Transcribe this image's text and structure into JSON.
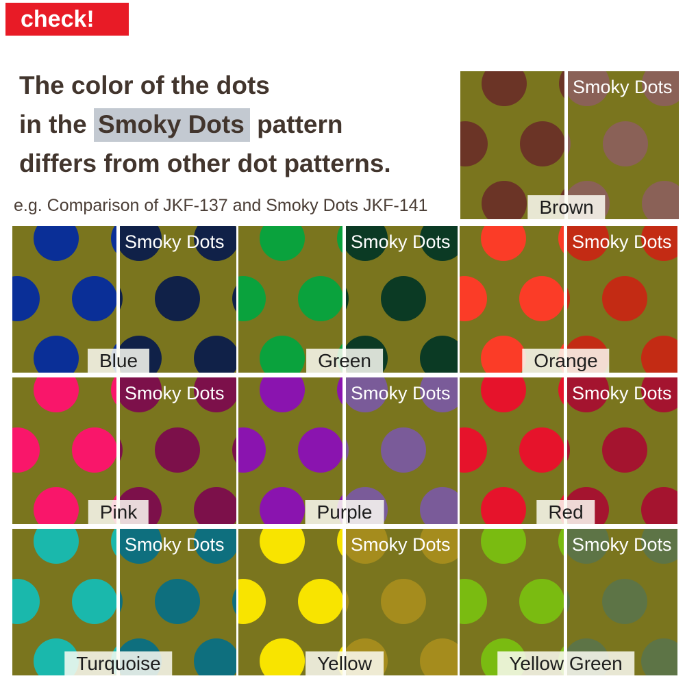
{
  "badge": {
    "label": "check!",
    "bg": "#e81b26",
    "fg": "#ffffff"
  },
  "heading": {
    "line1": "The color of the dots",
    "line2_pre": "in the ",
    "line2_hl": "Smoky Dots",
    "line2_post": " pattern",
    "line3": "differs from other dot patterns.",
    "text_color": "#42352d",
    "highlight_color": "#c3c9d1"
  },
  "subtitle": "e.g. Comparison of JKF-137 and Smoky Dots JKF-141",
  "swatch": {
    "background": "#7a751e",
    "smoky_label": "Smoky Dots",
    "smoky_label_color": "#ffffff",
    "name_label_bg": "rgba(252,251,243,0.85)",
    "name_label_color": "#1d1d1d"
  },
  "pairs": [
    {
      "name": "Brown",
      "vivid": "#6b3426",
      "smoky": "#8a6157"
    },
    {
      "name": "Blue",
      "vivid": "#0a2f97",
      "smoky": "#102148"
    },
    {
      "name": "Green",
      "vivid": "#0aa23d",
      "smoky": "#0b3a24"
    },
    {
      "name": "Orange",
      "vivid": "#fb3c27",
      "smoky": "#c32b14"
    },
    {
      "name": "Pink",
      "vivid": "#f9166a",
      "smoky": "#7c104a"
    },
    {
      "name": "Purple",
      "vivid": "#8a14af",
      "smoky": "#7a5b99"
    },
    {
      "name": "Red",
      "vivid": "#e6132b",
      "smoky": "#a4142f"
    },
    {
      "name": "Turquoise",
      "vivid": "#1ab8ac",
      "smoky": "#0e6f7e"
    },
    {
      "name": "Yellow",
      "vivid": "#f8e400",
      "smoky": "#a58c1d"
    },
    {
      "name": "Yellow Green",
      "vivid": "#7abb11",
      "smoky": "#5d7446"
    }
  ]
}
